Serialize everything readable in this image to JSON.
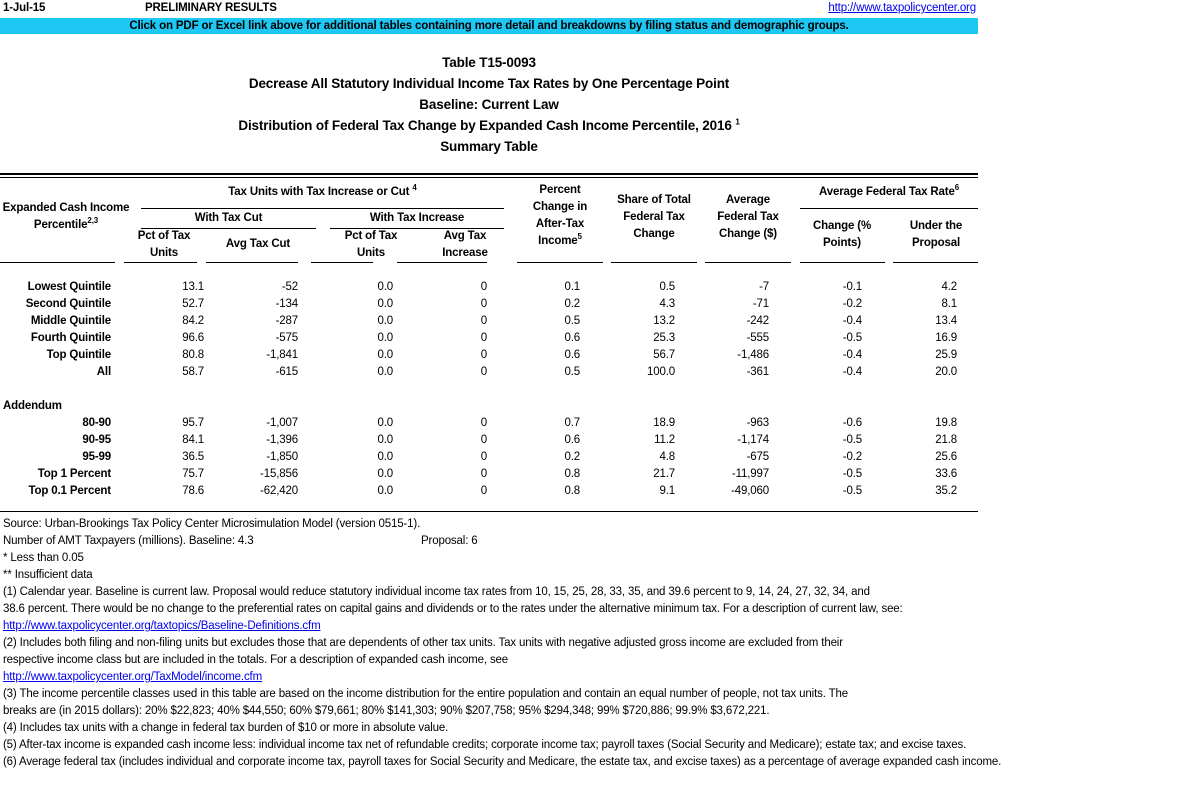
{
  "header": {
    "date": "1-Jul-15",
    "status": "PRELIMINARY RESULTS",
    "site_link": "http://www.taxpolicycenter.org",
    "banner": "Click on PDF or Excel link above for additional tables containing more detail and breakdowns by filing status and demographic groups."
  },
  "titles": {
    "table_id": "Table T15-0093",
    "line1": "Decrease All Statutory Individual Income Tax Rates by One Percentage Point",
    "line2": "Baseline: Current Law",
    "line3": "Distribution of Federal Tax Change by Expanded Cash Income Percentile, 2016",
    "line3_sup": "1",
    "line4": "Summary Table"
  },
  "columns": {
    "label": "Expanded Cash Income",
    "label2": "Percentile",
    "label_sup": "2,3",
    "group": "Tax Units with Tax Increase or Cut",
    "group_sup": "4",
    "cut": "With Tax Cut",
    "increase": "With Tax Increase",
    "c1a": "Pct of Tax",
    "c1b": "Units",
    "c2": "Avg Tax Cut",
    "c3a": "Pct of Tax",
    "c3b": "Units",
    "c4a": "Avg Tax",
    "c4b": "Increase",
    "c5a": "Percent",
    "c5b": "Change in",
    "c5c": "After-Tax",
    "c5d": "Income",
    "c5_sup": "5",
    "c6a": "Share of Total",
    "c6b": "Federal Tax",
    "c6c": "Change",
    "c7a": "Average",
    "c7b": "Federal Tax",
    "c7c": "Change ($)",
    "rate_group": "Average Federal Tax Rate",
    "rate_sup": "6",
    "c8a": "Change (%",
    "c8b": "Points)",
    "c9a": "Under the",
    "c9b": "Proposal"
  },
  "rows": [
    [
      "Lowest Quintile",
      "13.1",
      "-52",
      "0.0",
      "0",
      "0.1",
      "0.5",
      "-7",
      "-0.1",
      "4.2"
    ],
    [
      "Second Quintile",
      "52.7",
      "-134",
      "0.0",
      "0",
      "0.2",
      "4.3",
      "-71",
      "-0.2",
      "8.1"
    ],
    [
      "Middle Quintile",
      "84.2",
      "-287",
      "0.0",
      "0",
      "0.5",
      "13.2",
      "-242",
      "-0.4",
      "13.4"
    ],
    [
      "Fourth Quintile",
      "96.6",
      "-575",
      "0.0",
      "0",
      "0.6",
      "25.3",
      "-555",
      "-0.5",
      "16.9"
    ],
    [
      "Top Quintile",
      "80.8",
      "-1,841",
      "0.0",
      "0",
      "0.6",
      "56.7",
      "-1,486",
      "-0.4",
      "25.9"
    ],
    [
      "All",
      "58.7",
      "-615",
      "0.0",
      "0",
      "0.5",
      "100.0",
      "-361",
      "-0.4",
      "20.0"
    ]
  ],
  "addendum_label": "Addendum",
  "addendum_rows": [
    [
      "80-90",
      "95.7",
      "-1,007",
      "0.0",
      "0",
      "0.7",
      "18.9",
      "-963",
      "-0.6",
      "19.8"
    ],
    [
      "90-95",
      "84.1",
      "-1,396",
      "0.0",
      "0",
      "0.6",
      "11.2",
      "-1,174",
      "-0.5",
      "21.8"
    ],
    [
      "95-99",
      "36.5",
      "-1,850",
      "0.0",
      "0",
      "0.2",
      "4.8",
      "-675",
      "-0.2",
      "25.6"
    ],
    [
      "Top 1 Percent",
      "75.7",
      "-15,856",
      "0.0",
      "0",
      "0.8",
      "21.7",
      "-11,997",
      "-0.5",
      "33.6"
    ],
    [
      "Top 0.1 Percent",
      "78.6",
      "-62,420",
      "0.0",
      "0",
      "0.8",
      "9.1",
      "-49,060",
      "-0.5",
      "35.2"
    ]
  ],
  "notes": {
    "source": "Source: Urban-Brookings Tax Policy Center Microsimulation Model (version 0515-1).",
    "amt": "Number of AMT Taxpayers (millions).  Baseline: 4.3",
    "amt_proposal": "Proposal: 6",
    "star1": "* Less than 0.05",
    "star2": "** Insufficient data",
    "n1a": "(1) Calendar year. Baseline is current law. Proposal would reduce statutory individual income tax rates from 10, 15, 25, 28, 33, 35, and 39.6 percent to 9, 14, 24, 27, 32, 34, and",
    "n1b": "38.6 percent. There would be no change to the preferential rates on capital gains and dividends or to the rates under the alternative minimum tax. For a description of current law, see:",
    "n1link": "http://www.taxpolicycenter.org/taxtopics/Baseline-Definitions.cfm",
    "n2a": "(2) Includes both filing and non-filing units but excludes those that are dependents of other tax units. Tax units with negative adjusted gross income are excluded from their",
    "n2b": "respective income class but are included in the totals. For a description of expanded cash income, see",
    "n2link": "http://www.taxpolicycenter.org/TaxModel/income.cfm",
    "n3a": "(3) The income percentile classes used in this table are based on the income distribution for the entire population and contain an equal number of people, not tax units. The",
    "n3b": "breaks are (in 2015 dollars): 20% $22,823; 40% $44,550; 60% $79,661; 80% $141,303; 90% $207,758; 95% $294,348; 99% $720,886; 99.9% $3,672,221.",
    "n4": "(4) Includes tax units with a change in federal tax burden of $10 or more in absolute value.",
    "n5": "(5) After-tax income is expanded cash income less: individual income tax net of refundable credits; corporate income tax; payroll taxes (Social Security and Medicare); estate tax; and excise taxes.",
    "n6": "(6) Average federal tax (includes individual and corporate income tax, payroll taxes for Social Security and Medicare, the estate tax, and excise taxes) as a percentage of average expanded cash income."
  },
  "colors": {
    "banner": "#1ec8f5",
    "link": "#0000ee"
  }
}
